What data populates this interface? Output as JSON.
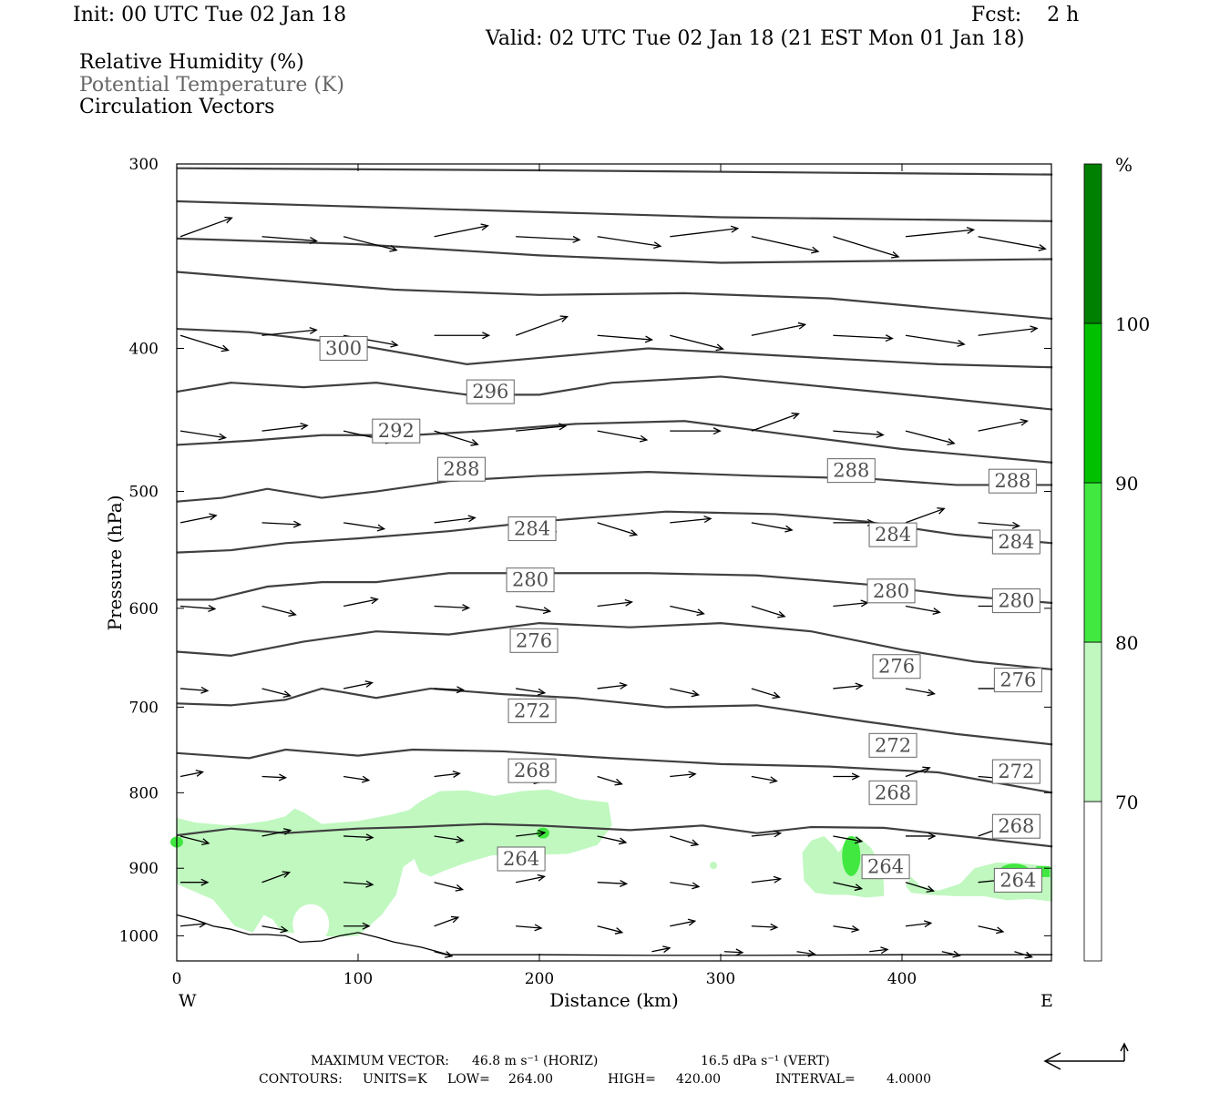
{
  "header": {
    "init": "Init: 00 UTC Tue 02 Jan 18",
    "fcst": "Fcst:    2 h",
    "valid": "Valid: 02 UTC Tue 02 Jan 18 (21 EST Mon 01 Jan 18)"
  },
  "fields": {
    "rh": "Relative Humidity (%)",
    "theta": "Potential Temperature (K)",
    "vectors": "Circulation Vectors"
  },
  "chart_data": {
    "type": "cross-section",
    "xlabel": "Distance (km)",
    "ylabel": "Pressure (hPa)",
    "xlim": [
      0,
      483
    ],
    "ylim": [
      1040,
      300
    ],
    "y_scale": "log-pressure",
    "x_ticks": [
      "0",
      "100",
      "200",
      "300",
      "400"
    ],
    "x_tick_values": [
      0,
      100,
      200,
      300,
      400
    ],
    "y_ticks": [
      "300",
      "400",
      "500",
      "600",
      "700",
      "800",
      "900",
      "1000"
    ],
    "y_tick_values": [
      300,
      400,
      500,
      600,
      700,
      800,
      900,
      1000
    ],
    "west_label": "W",
    "east_label": "E",
    "colorbar": {
      "unit": "%",
      "levels": [
        "70",
        "80",
        "90",
        "100"
      ],
      "colors": [
        "#ffffff",
        "#c0f8c0",
        "#40e840",
        "#00c000",
        "#008000"
      ]
    },
    "theta_labels": [
      {
        "text": "300",
        "x": 92,
        "p": 400
      },
      {
        "text": "296",
        "x": 173,
        "p": 428
      },
      {
        "text": "292",
        "x": 121,
        "p": 455
      },
      {
        "text": "288",
        "x": 157,
        "p": 483
      },
      {
        "text": "288",
        "x": 372,
        "p": 484
      },
      {
        "text": "288",
        "x": 461,
        "p": 492
      },
      {
        "text": "284",
        "x": 196,
        "p": 530
      },
      {
        "text": "284",
        "x": 395,
        "p": 535
      },
      {
        "text": "284",
        "x": 463,
        "p": 541
      },
      {
        "text": "280",
        "x": 195,
        "p": 574
      },
      {
        "text": "280",
        "x": 394,
        "p": 584
      },
      {
        "text": "280",
        "x": 463,
        "p": 593
      },
      {
        "text": "276",
        "x": 197,
        "p": 631
      },
      {
        "text": "276",
        "x": 397,
        "p": 657
      },
      {
        "text": "276",
        "x": 464,
        "p": 671
      },
      {
        "text": "272",
        "x": 196,
        "p": 704
      },
      {
        "text": "272",
        "x": 395,
        "p": 743
      },
      {
        "text": "272",
        "x": 463,
        "p": 774
      },
      {
        "text": "268",
        "x": 196,
        "p": 773
      },
      {
        "text": "268",
        "x": 395,
        "p": 800
      },
      {
        "text": "268",
        "x": 463,
        "p": 843
      },
      {
        "text": "264",
        "x": 190,
        "p": 887
      },
      {
        "text": "264",
        "x": 391,
        "p": 898
      },
      {
        "text": "264",
        "x": 464,
        "p": 917
      }
    ],
    "vector_stats": {
      "max_label": "MAXIMUM VECTOR:",
      "max_horiz": "46.8 m s⁻¹ (HORIZ)",
      "max_vert": "16.5 dPa s⁻¹ (VERT)"
    },
    "contour_info": {
      "contours": "CONTOURS:",
      "units": "UNITS=K",
      "low_label": "LOW=",
      "low": "264.00",
      "high_label": "HIGH=",
      "high": "420.00",
      "interval_label": "INTERVAL=",
      "interval": "4.0000"
    }
  }
}
